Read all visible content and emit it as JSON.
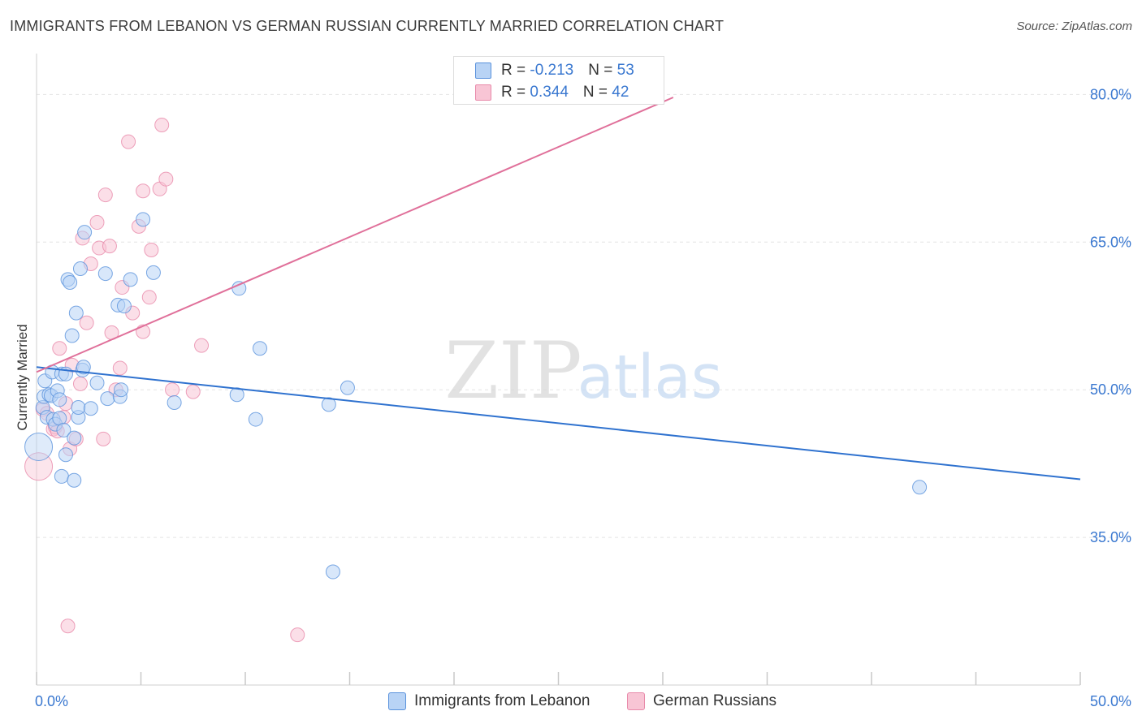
{
  "title": "IMMIGRANTS FROM LEBANON VS GERMAN RUSSIAN CURRENTLY MARRIED CORRELATION CHART",
  "source": "Source: ZipAtlas.com",
  "watermark": {
    "zip": "ZIP",
    "atlas": "atlas"
  },
  "legend": {
    "series1": {
      "r_label": "R = ",
      "r_value": "-0.213",
      "n_label": "N = ",
      "n_value": "53"
    },
    "series2": {
      "r_label": "R = ",
      "r_value": " 0.344",
      "n_label": "N = ",
      "n_value": "42"
    }
  },
  "colors": {
    "blue_fill": "#b8d3f5",
    "blue_stroke": "#5a92dc",
    "blue_line": "#2f72cf",
    "pink_fill": "#f8c5d5",
    "pink_stroke": "#e88aaa",
    "pink_line": "#e0709a",
    "tick_text": "#3a78d0",
    "grid": "#e4e4e4"
  },
  "chart_data": {
    "type": "scatter",
    "title": "IMMIGRANTS FROM LEBANON VS GERMAN RUSSIAN CURRENTLY MARRIED CORRELATION CHART",
    "xlabel": "",
    "ylabel": "Currently Married",
    "xlim": [
      0,
      50
    ],
    "ylim": [
      20,
      83
    ],
    "x_tick_labels": [
      "0.0%",
      "50.0%"
    ],
    "y_ticks": [
      35,
      50,
      65,
      80
    ],
    "y_tick_labels": [
      "35.0%",
      "50.0%",
      "65.0%",
      "80.0%"
    ],
    "grid": true,
    "series": [
      {
        "name": "Immigrants from Lebanon",
        "color": "#b8d3f5",
        "r": -0.213,
        "n": 53,
        "trend": {
          "x": [
            0,
            50
          ],
          "y": [
            52.3,
            40.9
          ]
        },
        "points": [
          {
            "x": 0.1,
            "y": 44.2,
            "big": true
          },
          {
            "x": 0.3,
            "y": 48.2
          },
          {
            "x": 0.35,
            "y": 49.3
          },
          {
            "x": 0.4,
            "y": 50.9
          },
          {
            "x": 0.5,
            "y": 47.2
          },
          {
            "x": 0.6,
            "y": 49.5
          },
          {
            "x": 0.7,
            "y": 49.4
          },
          {
            "x": 0.75,
            "y": 51.8
          },
          {
            "x": 0.8,
            "y": 47.0
          },
          {
            "x": 0.9,
            "y": 46.5
          },
          {
            "x": 1.0,
            "y": 49.9
          },
          {
            "x": 1.1,
            "y": 49.0
          },
          {
            "x": 1.1,
            "y": 47.1
          },
          {
            "x": 1.2,
            "y": 51.6
          },
          {
            "x": 1.2,
            "y": 41.2
          },
          {
            "x": 1.3,
            "y": 45.9
          },
          {
            "x": 1.4,
            "y": 51.6
          },
          {
            "x": 1.4,
            "y": 43.4
          },
          {
            "x": 1.5,
            "y": 61.2
          },
          {
            "x": 1.6,
            "y": 60.9
          },
          {
            "x": 1.7,
            "y": 55.5
          },
          {
            "x": 1.8,
            "y": 40.8
          },
          {
            "x": 1.8,
            "y": 45.1
          },
          {
            "x": 1.9,
            "y": 57.8
          },
          {
            "x": 2.0,
            "y": 47.2
          },
          {
            "x": 2.0,
            "y": 48.2
          },
          {
            "x": 2.1,
            "y": 62.3
          },
          {
            "x": 2.2,
            "y": 52.0
          },
          {
            "x": 2.25,
            "y": 52.3
          },
          {
            "x": 2.3,
            "y": 66.0
          },
          {
            "x": 2.6,
            "y": 48.1
          },
          {
            "x": 2.9,
            "y": 50.7
          },
          {
            "x": 3.3,
            "y": 61.8
          },
          {
            "x": 3.4,
            "y": 49.1
          },
          {
            "x": 3.9,
            "y": 58.6
          },
          {
            "x": 4.0,
            "y": 49.3
          },
          {
            "x": 4.05,
            "y": 50.0
          },
          {
            "x": 4.2,
            "y": 58.5
          },
          {
            "x": 4.5,
            "y": 61.2
          },
          {
            "x": 5.1,
            "y": 67.3
          },
          {
            "x": 5.6,
            "y": 61.9
          },
          {
            "x": 6.6,
            "y": 48.7
          },
          {
            "x": 9.6,
            "y": 49.5
          },
          {
            "x": 9.7,
            "y": 60.3
          },
          {
            "x": 10.5,
            "y": 47.0
          },
          {
            "x": 10.7,
            "y": 54.2
          },
          {
            "x": 14.0,
            "y": 48.5
          },
          {
            "x": 14.9,
            "y": 50.2
          },
          {
            "x": 42.3,
            "y": 40.1
          },
          {
            "x": 14.2,
            "y": 31.5
          }
        ]
      },
      {
        "name": "German Russians",
        "color": "#f8c5d5",
        "r": 0.344,
        "n": 42,
        "trend": {
          "x": [
            0,
            30.5
          ],
          "y": [
            51.8,
            79.7
          ]
        },
        "points": [
          {
            "x": 0.1,
            "y": 42.2,
            "big": true
          },
          {
            "x": 0.3,
            "y": 48.0
          },
          {
            "x": 0.5,
            "y": 47.6
          },
          {
            "x": 0.8,
            "y": 46.0
          },
          {
            "x": 0.9,
            "y": 46.2
          },
          {
            "x": 1.0,
            "y": 45.8
          },
          {
            "x": 1.1,
            "y": 54.2
          },
          {
            "x": 1.3,
            "y": 47.2
          },
          {
            "x": 1.4,
            "y": 48.6
          },
          {
            "x": 1.5,
            "y": 26.0
          },
          {
            "x": 1.6,
            "y": 44.0
          },
          {
            "x": 1.7,
            "y": 52.5
          },
          {
            "x": 1.9,
            "y": 45.0
          },
          {
            "x": 2.1,
            "y": 50.6
          },
          {
            "x": 2.2,
            "y": 65.4
          },
          {
            "x": 2.4,
            "y": 56.8
          },
          {
            "x": 2.6,
            "y": 62.8
          },
          {
            "x": 2.9,
            "y": 67.0
          },
          {
            "x": 3.0,
            "y": 64.4
          },
          {
            "x": 3.2,
            "y": 45.0
          },
          {
            "x": 3.3,
            "y": 69.8
          },
          {
            "x": 3.5,
            "y": 64.6
          },
          {
            "x": 3.6,
            "y": 55.8
          },
          {
            "x": 3.8,
            "y": 50.0
          },
          {
            "x": 4.0,
            "y": 52.2
          },
          {
            "x": 4.1,
            "y": 60.4
          },
          {
            "x": 4.4,
            "y": 75.2
          },
          {
            "x": 4.6,
            "y": 57.8
          },
          {
            "x": 4.9,
            "y": 66.6
          },
          {
            "x": 5.1,
            "y": 70.2
          },
          {
            "x": 5.1,
            "y": 55.9
          },
          {
            "x": 5.4,
            "y": 59.4
          },
          {
            "x": 5.5,
            "y": 64.2
          },
          {
            "x": 5.9,
            "y": 70.4
          },
          {
            "x": 6.0,
            "y": 76.9
          },
          {
            "x": 6.2,
            "y": 71.4
          },
          {
            "x": 6.5,
            "y": 50.0
          },
          {
            "x": 7.5,
            "y": 49.8
          },
          {
            "x": 7.9,
            "y": 54.5
          },
          {
            "x": 12.5,
            "y": 25.1
          }
        ]
      }
    ]
  }
}
